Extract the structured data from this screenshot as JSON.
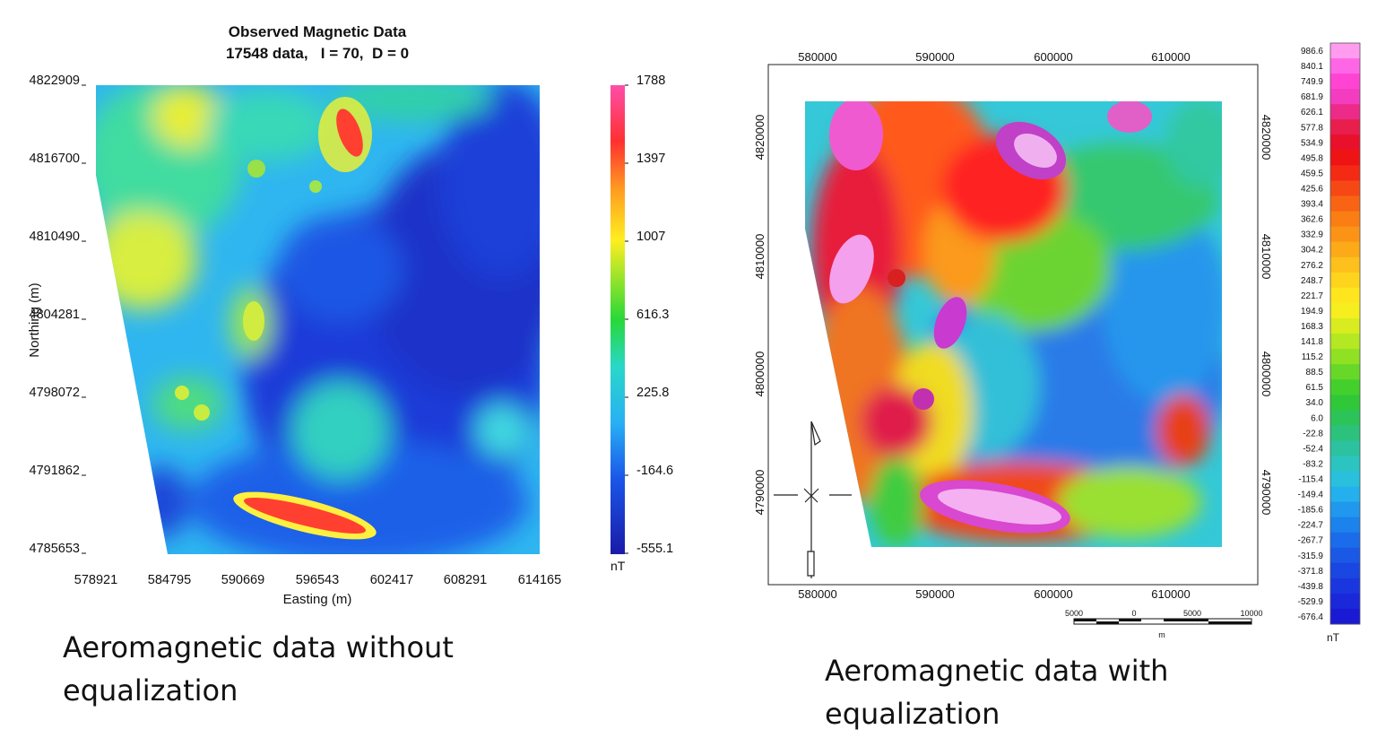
{
  "chart_data": [
    {
      "type": "heatmap",
      "title": "Observed Magnetic Data",
      "subtitle": "17548 data,   I = 70,  D = 0",
      "xlabel": "Easting (m)",
      "ylabel": "Northing (m)",
      "x_ticks": [
        "578921",
        "584795",
        "590669",
        "596543",
        "602417",
        "608291",
        "614165"
      ],
      "y_ticks": [
        "4822909",
        "4816700",
        "4810490",
        "4804281",
        "4798072",
        "4791862",
        "4785653"
      ],
      "xlim": [
        578921,
        614165
      ],
      "ylim": [
        4785653,
        4822909
      ],
      "colorbar": {
        "ticks": [
          "1788",
          "1397",
          "1007",
          "616.3",
          "225.8",
          "-164.6",
          "-555.1"
        ],
        "unit": "nT",
        "range": [
          -555.1,
          1788
        ]
      },
      "caption": "Aeromagnetic data without equalization"
    },
    {
      "type": "heatmap",
      "x_ticks": [
        "580000",
        "590000",
        "600000",
        "610000"
      ],
      "y_ticks": [
        "4820000",
        "4810000",
        "4800000",
        "4790000"
      ],
      "colorbar": {
        "ticks": [
          "986.6",
          "840.1",
          "749.9",
          "681.9",
          "626.1",
          "577.8",
          "534.9",
          "495.8",
          "459.5",
          "425.6",
          "393.4",
          "362.6",
          "332.9",
          "304.2",
          "276.2",
          "248.7",
          "221.7",
          "194.9",
          "168.3",
          "141.8",
          "115.2",
          "88.5",
          "61.5",
          "34.0",
          "6.0",
          "-22.8",
          "-52.4",
          "-83.2",
          "-115.4",
          "-149.4",
          "-185.6",
          "-224.7",
          "-267.7",
          "-315.9",
          "-371.8",
          "-439.8",
          "-529.9",
          "-676.4"
        ],
        "unit": "nT",
        "colors": [
          "#ff9cf0",
          "#ff66e6",
          "#ff44d4",
          "#f43cc0",
          "#ec2a88",
          "#e81e4c",
          "#e8102a",
          "#ee1414",
          "#f42a14",
          "#f64814",
          "#f86414",
          "#fa7e14",
          "#fb9416",
          "#fcaa18",
          "#fdc01c",
          "#fed41c",
          "#fee51e",
          "#f6ee1e",
          "#d8ec20",
          "#b4e822",
          "#90e024",
          "#68d828",
          "#44d02c",
          "#30c838",
          "#2cc458",
          "#2cc27c",
          "#2cc2a0",
          "#2cc4c0",
          "#28c0dc",
          "#24b0ec",
          "#2098ee",
          "#1c82ec",
          "#1a6cea",
          "#1a58e6",
          "#1a46e2",
          "#1a36de",
          "#1a28da",
          "#1a1ad4"
        ]
      },
      "scale_bar": {
        "ticks": [
          "5000",
          "0",
          "5000",
          "10000"
        ],
        "unit": "m"
      },
      "caption": "Aeromagnetic data with equalization"
    }
  ]
}
